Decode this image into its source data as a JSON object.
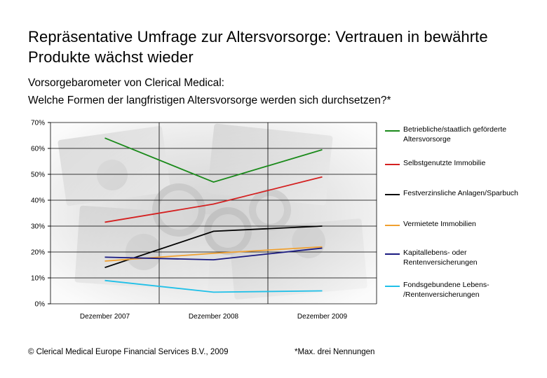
{
  "title": "Repräsentative Umfrage zur Altersvorsorge: Vertrauen in bewährte Produkte wächst wieder",
  "subtitle_line1": "Vorsorgebarometer von Clerical Medical:",
  "subtitle_line2": "Welche Formen der langfristigen Altersvorsorge werden sich durchsetzen?*",
  "footer": {
    "copyright": "© Clerical Medical Europe Financial Services B.V., 2009",
    "note": "*Max. drei Nennungen"
  },
  "chart_data": {
    "type": "line",
    "categories": [
      "Dezember 2007",
      "Dezember 2008",
      "Dezember 2009"
    ],
    "ylim": [
      0,
      70
    ],
    "yticks": [
      0,
      10,
      20,
      30,
      40,
      50,
      60,
      70
    ],
    "ytick_labels": [
      "0%",
      "10%",
      "20%",
      "30%",
      "40%",
      "50%",
      "60%",
      "70%"
    ],
    "grid": true,
    "legend_position": "right",
    "series": [
      {
        "name": "Betriebliche/staatlich geförderte Altersvorsorge",
        "color": "#1a8a1a",
        "values": [
          64,
          47,
          59.5
        ]
      },
      {
        "name": "Selbstgenutzte Immobilie",
        "color": "#d42020",
        "values": [
          31.5,
          38.5,
          49
        ]
      },
      {
        "name": "Festverzinsliche Anlagen/Sparbuch",
        "color": "#000000",
        "values": [
          14,
          28,
          30
        ]
      },
      {
        "name": "Vermietete Immobilien",
        "color": "#f0a030",
        "values": [
          16.5,
          19.5,
          22
        ]
      },
      {
        "name": "Kapitallebens- oder Rentenversicherungen",
        "color": "#1a1a80",
        "values": [
          18,
          17,
          21.5
        ]
      },
      {
        "name": "Fondsgebundene Lebens- /Rentenversicherungen",
        "color": "#20c0e8",
        "values": [
          9,
          4.5,
          5
        ]
      }
    ]
  }
}
